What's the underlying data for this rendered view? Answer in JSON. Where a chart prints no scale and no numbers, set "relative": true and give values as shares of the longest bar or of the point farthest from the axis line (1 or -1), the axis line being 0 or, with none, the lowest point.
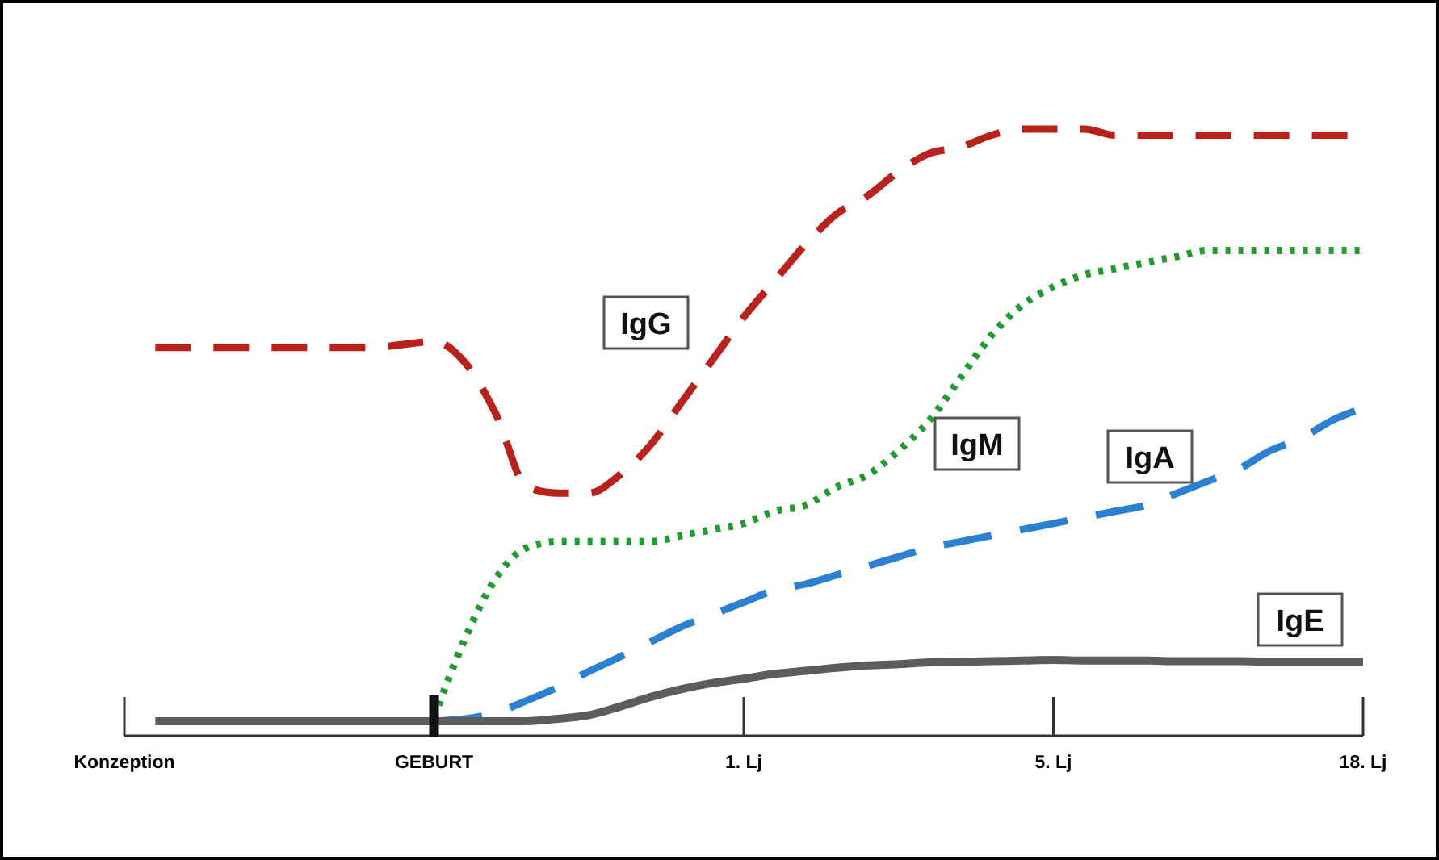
{
  "chart_data": {
    "type": "line",
    "relative": true,
    "categories": [
      "Konzeption",
      null,
      null,
      null,
      null,
      null,
      null,
      null,
      null,
      null,
      "GEBURT",
      null,
      null,
      null,
      null,
      null,
      null,
      null,
      null,
      null,
      "1. Lj",
      null,
      null,
      null,
      null,
      null,
      null,
      null,
      null,
      null,
      "5. Lj",
      null,
      null,
      null,
      null,
      null,
      null,
      null,
      null,
      null,
      "18. Lj"
    ],
    "legend": false,
    "series": [
      {
        "name": "IgG",
        "color": "#b8221c",
        "line_style": "dashed",
        "values": [
          null,
          0.64,
          0.64,
          0.64,
          0.64,
          0.64,
          0.64,
          0.64,
          0.64,
          0.645,
          0.65,
          0.615,
          0.53,
          0.41,
          0.4,
          0.4,
          0.43,
          0.48,
          0.55,
          0.62,
          0.69,
          0.75,
          0.81,
          0.86,
          0.89,
          0.93,
          0.96,
          0.97,
          0.99,
          1.0,
          1.0,
          1.0,
          0.99,
          0.99,
          0.99,
          0.99,
          0.99,
          0.99,
          0.99,
          0.99,
          0.99
        ]
      },
      {
        "name": "IgM",
        "color": "#229a32",
        "line_style": "dotted",
        "values": [
          null,
          null,
          null,
          null,
          null,
          null,
          null,
          null,
          null,
          null,
          0.03,
          0.16,
          0.26,
          0.31,
          0.32,
          0.32,
          0.32,
          0.32,
          0.33,
          0.34,
          0.35,
          0.37,
          0.38,
          0.41,
          0.43,
          0.47,
          0.52,
          0.59,
          0.66,
          0.71,
          0.74,
          0.76,
          0.77,
          0.78,
          0.79,
          0.8,
          0.8,
          0.8,
          0.8,
          0.8,
          0.8
        ]
      },
      {
        "name": "IgA",
        "color": "#2b80cf",
        "line_style": "dashed",
        "values": [
          null,
          null,
          null,
          null,
          null,
          null,
          null,
          null,
          null,
          null,
          0.024,
          0.028,
          0.038,
          0.058,
          0.08,
          0.106,
          0.13,
          0.155,
          0.18,
          0.2,
          0.22,
          0.24,
          0.25,
          0.265,
          0.28,
          0.295,
          0.31,
          0.32,
          0.33,
          0.34,
          0.35,
          0.36,
          0.37,
          0.38,
          0.4,
          0.42,
          0.44,
          0.47,
          0.49,
          0.52,
          0.54
        ]
      },
      {
        "name": "IgE",
        "color": "#5c5c5c",
        "line_style": "solid",
        "values": [
          null,
          0.024,
          0.024,
          0.024,
          0.024,
          0.024,
          0.024,
          0.024,
          0.024,
          0.024,
          0.024,
          0.024,
          0.024,
          0.024,
          0.028,
          0.034,
          0.048,
          0.064,
          0.077,
          0.087,
          0.094,
          0.102,
          0.107,
          0.112,
          0.116,
          0.118,
          0.121,
          0.122,
          0.123,
          0.124,
          0.125,
          0.124,
          0.124,
          0.124,
          0.123,
          0.123,
          0.123,
          0.122,
          0.122,
          0.122,
          0.122
        ]
      }
    ]
  }
}
